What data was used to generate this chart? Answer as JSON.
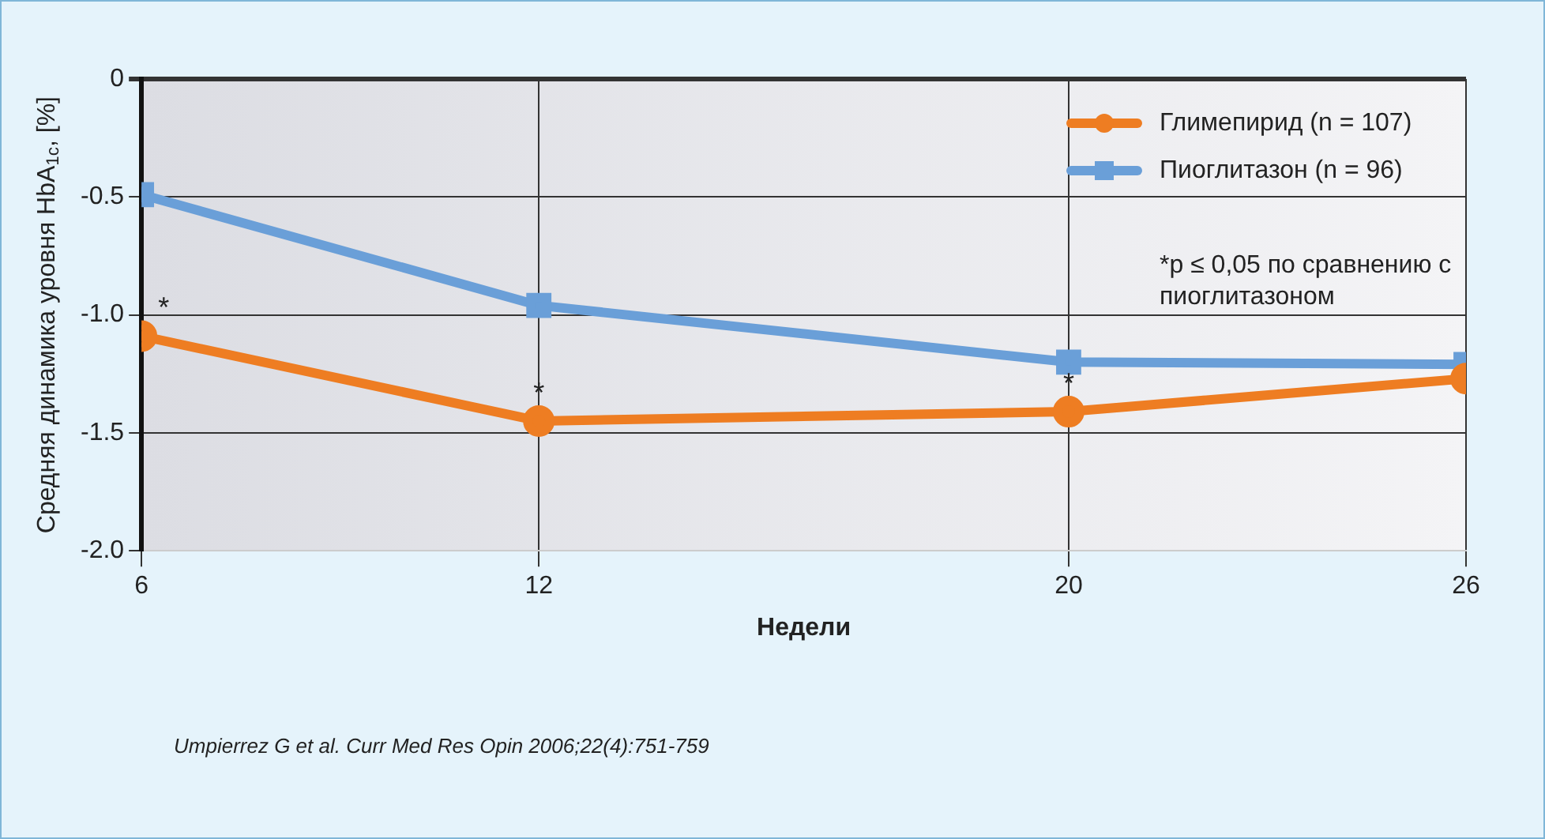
{
  "chart_data": {
    "type": "line",
    "xlabel": "Недели",
    "ylabel": "Средняя динамика уровня HbA$_{1c}$, [%]",
    "x": [
      6,
      12,
      20,
      26
    ],
    "xlim": [
      6,
      26
    ],
    "xticks": [
      6,
      12,
      20,
      26
    ],
    "ylim": [
      -2.0,
      0
    ],
    "yticks": [
      {
        "value": -2.0,
        "label": "-2.0"
      },
      {
        "value": -1.5,
        "label": "-1.5"
      },
      {
        "value": -1.0,
        "label": "-1.0"
      },
      {
        "value": -0.5,
        "label": "-0.5"
      },
      0
    ],
    "series": [
      {
        "name": "Глимепирид (n = 107)",
        "color": "#ee7d22",
        "marker": "circle",
        "values": [
          -1.09,
          -1.45,
          -1.41,
          -1.27
        ]
      },
      {
        "name": "Пиоглитазон (n = 96)",
        "color": "#6a9fd8",
        "marker": "square",
        "values": [
          -0.49,
          -0.96,
          -1.2,
          -1.21
        ]
      }
    ],
    "annotations": [
      {
        "text": "*",
        "x": 6,
        "y": -1.09
      },
      {
        "text": "*",
        "x": 12,
        "y": -1.45
      },
      {
        "text": "*",
        "x": 20,
        "y": -1.41
      },
      "*p ≤ 0,05 по сравнению с пиоглитазоном",
      "Umpierrez G et al. Curr Med Res Opin 2006;22(4):751-759"
    ],
    "grid": true,
    "legend": "top right",
    "line_style": "solid"
  }
}
